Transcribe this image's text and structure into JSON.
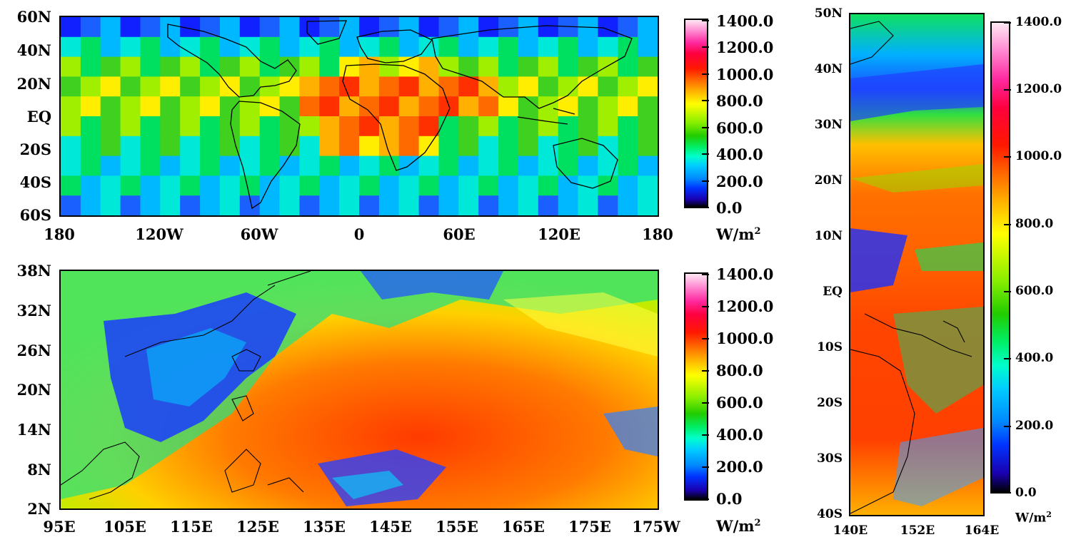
{
  "panels": [
    {
      "id": "global",
      "lat_labels": [
        "60N",
        "40N",
        "20N",
        "EQ",
        "20S",
        "40S",
        "60S"
      ],
      "lon_labels": [
        "180",
        "120W",
        "60W",
        "0",
        "60E",
        "120E",
        "180"
      ],
      "colorbar": {
        "ticks": [
          "1400.0",
          "1200.0",
          "1000.0",
          "800.0",
          "600.0",
          "400.0",
          "200.0",
          "0.0"
        ],
        "unit": "W/m",
        "unit_sup": "2"
      }
    },
    {
      "id": "pacific",
      "lat_labels": [
        "38N",
        "32N",
        "26N",
        "20N",
        "14N",
        "8N",
        "2N"
      ],
      "lon_labels": [
        "95E",
        "105E",
        "115E",
        "125E",
        "135E",
        "145E",
        "155E",
        "165E",
        "175E",
        "175W"
      ],
      "colorbar": {
        "ticks": [
          "1400.0",
          "1200.0",
          "1000.0",
          "800.0",
          "600.0",
          "400.0",
          "200.0",
          "0.0"
        ],
        "unit": "W/m",
        "unit_sup": "2"
      }
    },
    {
      "id": "strip",
      "lat_labels": [
        "50N",
        "40N",
        "30N",
        "20N",
        "10N",
        "EQ",
        "10S",
        "20S",
        "30S",
        "40S"
      ],
      "lon_labels": [
        "140E",
        "152E",
        "164E"
      ],
      "colorbar": {
        "ticks": [
          "1400.0",
          "1200.0",
          "1000.0",
          "800.0",
          "600.0",
          "400.0",
          "200.0",
          "0.0"
        ],
        "unit": "W/m",
        "unit_sup": "2"
      }
    }
  ],
  "colors": {
    "scale": [
      "#000000",
      "#1a00b0",
      "#0033ff",
      "#00ccff",
      "#00ee66",
      "#22cc00",
      "#88ee00",
      "#ffff00",
      "#ffb000",
      "#ff6600",
      "#ff1800",
      "#ff2aa0",
      "#ffe8f4"
    ]
  }
}
